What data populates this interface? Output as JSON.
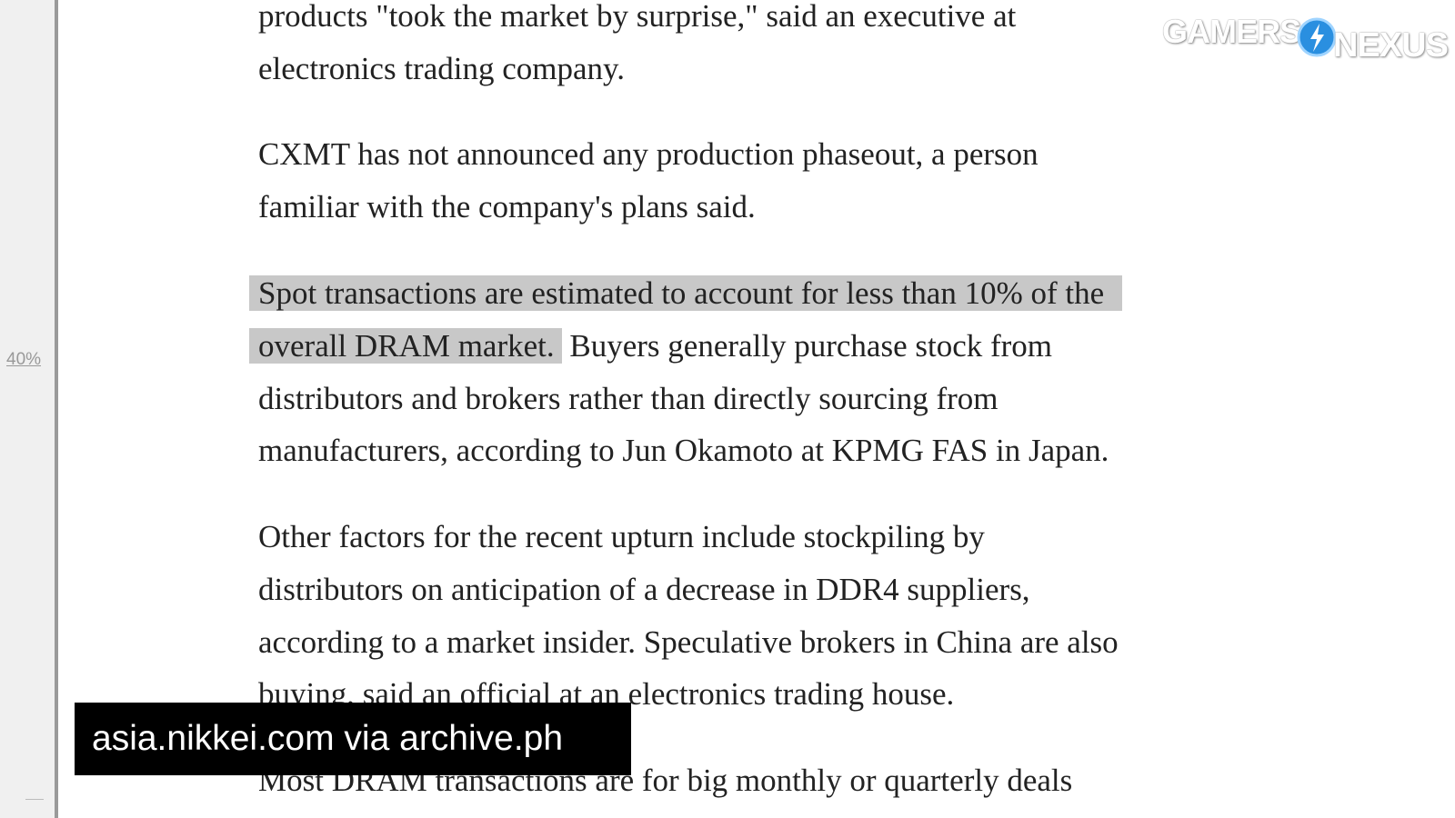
{
  "sidebar": {
    "zoom_label": "40%"
  },
  "article": {
    "lines": [
      {
        "text": "products \"took the market by surprise,\" said an executive at"
      },
      {
        "text": "electronics trading company."
      },
      {
        "text": "CXMT has not announced any production phaseout, a person"
      },
      {
        "text": "familiar with the company's plans said."
      },
      {
        "highlight": "Spot transactions are estimated to account for less than 10% of the",
        "text": ""
      },
      {
        "highlight": "overall DRAM market.",
        "text": " Buyers generally purchase stock from"
      },
      {
        "text": "distributors and brokers rather than directly sourcing from"
      },
      {
        "text": "manufacturers, according to Jun Okamoto at KPMG FAS in Japan."
      },
      {
        "text": "Other factors for the recent upturn include stockpiling by"
      },
      {
        "text": "distributors on anticipation of a decrease in DDR4 suppliers,"
      },
      {
        "text": "according to a market insider. Speculative brokers in China are also"
      },
      {
        "text": "buying, said an official at an electronics trading house."
      },
      {
        "text": "Most DRAM transactions are for big monthly or quarterly deals"
      }
    ]
  },
  "caption": {
    "text": "asia.nikkei.com via archive.ph"
  },
  "logo": {
    "left": "GAMERS",
    "right": "NEXUS",
    "accent_color": "#2a8fe0"
  },
  "colors": {
    "highlight": "#c8c8c8"
  }
}
